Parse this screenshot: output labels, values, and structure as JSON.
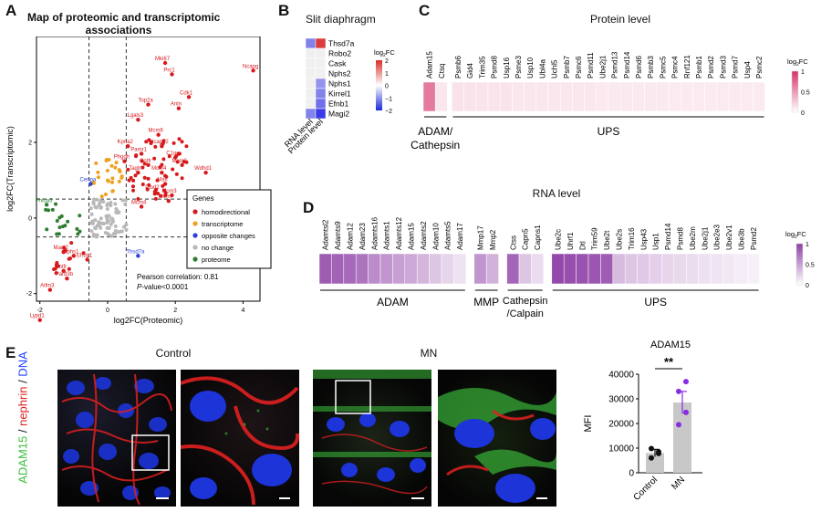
{
  "panels": {
    "a": {
      "letter": "A",
      "title_line1": "Map of proteomic and transcriptomic",
      "title_line2": "associations"
    },
    "b": {
      "letter": "B",
      "title": "Slit diaphragm"
    },
    "c": {
      "letter": "C",
      "title": "Protein level"
    },
    "d": {
      "letter": "D",
      "title": "RNA level"
    },
    "e": {
      "letter": "E",
      "control_label": "Control",
      "mn_label": "MN",
      "ylabel_part1": "ADAM15",
      "ylabel_sep1": " / ",
      "ylabel_part2": "nephrin",
      "ylabel_sep2": " / ",
      "ylabel_part3": "DNA"
    }
  },
  "colors": {
    "homodirectional": "#d7191c",
    "transcriptome": "#f0a020",
    "opposite": "#2b3fd8",
    "nochange": "#b8b8b8",
    "proteome": "#2e7d32",
    "heat_pos": "#d6336c",
    "heat_purple": "#8e3fa6",
    "adam15_green": "#3cbf3c",
    "nephrin_red": "#e02020",
    "dna_blue": "#2040ff"
  },
  "chart_data": [
    {
      "id": "scatter_A",
      "type": "scatter",
      "xlabel": "log2FC(Proteomic)",
      "ylabel": "log2FC(Transcriptomic)",
      "xlim": [
        -2.1,
        4.5
      ],
      "ylim": [
        -2.2,
        4.8
      ],
      "xticks": [
        -2,
        0,
        2,
        4
      ],
      "yticks": [
        -2,
        0,
        2
      ],
      "legend_title": "Genes",
      "legend": [
        {
          "key": "homodirectional",
          "label": "homodirectional"
        },
        {
          "key": "transcriptome",
          "label": "transcriptome"
        },
        {
          "key": "opposite",
          "label": "opposite changes"
        },
        {
          "key": "nochange",
          "label": "no change"
        },
        {
          "key": "proteome",
          "label": "proteome"
        }
      ],
      "annotation_line1": "Pearson correlation: 0.81",
      "annotation_line2_italic": "P",
      "annotation_line2_rest": "-value<0.0001",
      "labeled_points": [
        {
          "label": "Mki67",
          "x": 1.7,
          "y": 4.1,
          "group": "homodirectional"
        },
        {
          "label": "Prc1",
          "x": 1.9,
          "y": 3.8,
          "group": "homodirectional"
        },
        {
          "label": "Ncapg",
          "x": 4.3,
          "y": 3.9,
          "group": "homodirectional"
        },
        {
          "label": "Cdk1",
          "x": 2.4,
          "y": 3.2,
          "group": "homodirectional"
        },
        {
          "label": "Top2a",
          "x": 1.2,
          "y": 3.0,
          "group": "homodirectional"
        },
        {
          "label": "Anln",
          "x": 2.1,
          "y": 2.9,
          "group": "homodirectional"
        },
        {
          "label": "Lgals3",
          "x": 0.9,
          "y": 2.6,
          "group": "homodirectional"
        },
        {
          "label": "Mcm6",
          "x": 1.5,
          "y": 2.2,
          "group": "homodirectional"
        },
        {
          "label": "Kpna2",
          "x": 0.6,
          "y": 1.9,
          "group": "homodirectional"
        },
        {
          "label": "Pamr1",
          "x": 1.0,
          "y": 1.7,
          "group": "homodirectional"
        },
        {
          "label": "Ncapg2",
          "x": 1.6,
          "y": 1.9,
          "group": "homodirectional"
        },
        {
          "label": "C1qc",
          "x": 2.0,
          "y": 1.6,
          "group": "homodirectional"
        },
        {
          "label": "Phgdh",
          "x": 0.5,
          "y": 1.5,
          "group": "homodirectional"
        },
        {
          "label": "Cntfr",
          "x": 1.2,
          "y": 1.4,
          "group": "homodirectional"
        },
        {
          "label": "Mcm2",
          "x": 2.2,
          "y": 1.4,
          "group": "homodirectional"
        },
        {
          "label": "Tagln",
          "x": 0.9,
          "y": 1.2,
          "group": "homodirectional"
        },
        {
          "label": "Mcm4",
          "x": 1.6,
          "y": 1.2,
          "group": "homodirectional"
        },
        {
          "label": "Wdhd1",
          "x": 2.9,
          "y": 1.2,
          "group": "homodirectional"
        },
        {
          "label": "Maff",
          "x": 1.7,
          "y": 0.9,
          "group": "homodirectional"
        },
        {
          "label": "Plod2",
          "x": 1.4,
          "y": 0.7,
          "group": "homodirectional"
        },
        {
          "label": "Mcm3",
          "x": 1.9,
          "y": 0.6,
          "group": "homodirectional"
        },
        {
          "label": "Mcm7",
          "x": 1.8,
          "y": 0.45,
          "group": "homodirectional"
        },
        {
          "label": "Mcm4",
          "x": 1.0,
          "y": 0.3,
          "group": "homodirectional"
        },
        {
          "label": "Cenpa",
          "x": -0.5,
          "y": 0.9,
          "group": "opposite"
        },
        {
          "label": "Phlda3",
          "x": -1.8,
          "y": 0.35,
          "group": "proteome"
        },
        {
          "label": "Magi2",
          "x": -1.3,
          "y": -0.9,
          "group": "homodirectional"
        },
        {
          "label": "Nphs1",
          "x": -1.0,
          "y": -1.0,
          "group": "homodirectional"
        },
        {
          "label": "Ehbp1",
          "x": -0.6,
          "y": -1.1,
          "group": "homodirectional"
        },
        {
          "label": "Thsd7a",
          "x": 0.9,
          "y": -1.0,
          "group": "opposite"
        },
        {
          "label": "Cntfr",
          "x": -1.3,
          "y": -1.4,
          "group": "homodirectional"
        },
        {
          "label": "Pard3b",
          "x": -1.2,
          "y": -1.6,
          "group": "homodirectional"
        },
        {
          "label": "Aifm3",
          "x": -1.7,
          "y": -1.9,
          "group": "homodirectional"
        },
        {
          "label": "Lypd1",
          "x": -2.0,
          "y": -2.7,
          "group": "homodirectional"
        }
      ]
    },
    {
      "id": "heatmap_B",
      "type": "heatmap",
      "rows": [
        "Thsd7a",
        "Robo2",
        "Cask",
        "Nphs2",
        "Nphs1",
        "Kirrel1",
        "Efnb1",
        "Magi2"
      ],
      "columns": [
        "RNA level",
        "Protein level"
      ],
      "values": [
        [
          -0.5,
          0.9
        ],
        [
          0,
          0
        ],
        [
          0,
          0
        ],
        [
          0,
          0
        ],
        [
          0,
          -0.4
        ],
        [
          0,
          -0.5
        ],
        [
          0,
          -0.6
        ],
        [
          -0.5,
          -0.9
        ]
      ],
      "colorbar_label_base": "log",
      "colorbar_label_sub": "2",
      "colorbar_label_tail": "FC",
      "colorbar_ticks": [
        "2",
        "1",
        "0",
        "−1",
        "−2"
      ]
    },
    {
      "id": "heatmap_C",
      "type": "heatmap",
      "columns": [
        "Adam15",
        "Ctsq",
        "Psmb6",
        "Gid4",
        "Trim35",
        "Psmd8",
        "Usp16",
        "Psme3",
        "Usp10",
        "Ubl4a",
        "Uchl5",
        "Psmb7",
        "Psmc6",
        "Psmd11",
        "Ube2j1",
        "Psmd13",
        "Psmd14",
        "Psmd6",
        "Psmb3",
        "Psmc5",
        "Psmc4",
        "Rnf121",
        "Psmb1",
        "Psmd2",
        "Psmd3",
        "Psmd7",
        "Usp4",
        "Psmc2"
      ],
      "values": [
        0.65,
        0.12,
        0.14,
        0.14,
        0.13,
        0.13,
        0.13,
        0.12,
        0.12,
        0.12,
        0.12,
        0.12,
        0.12,
        0.12,
        0.11,
        0.11,
        0.11,
        0.11,
        0.11,
        0.11,
        0.1,
        0.1,
        0.1,
        0.1,
        0.1,
        0.1,
        0.1,
        0.1
      ],
      "groups": [
        {
          "label_line1": "ADAM/",
          "label_line2": "Cathepsin",
          "start": 0,
          "end": 1
        },
        {
          "label_line1": "UPS",
          "label_line2": "",
          "start": 2,
          "end": 27
        }
      ],
      "colorbar_ticks": [
        "1",
        "0.5",
        "0"
      ]
    },
    {
      "id": "heatmap_D",
      "type": "heatmap",
      "blocks": [
        {
          "group": "ADAM",
          "columns": [
            "Adamtsl2",
            "Adamts9",
            "Adam12",
            "Adam23",
            "Adamts16",
            "Adamts1",
            "Adamts12",
            "Adam15",
            "Adamts2",
            "Adam10",
            "Adamts5",
            "Adam17"
          ],
          "values": [
            0.85,
            0.82,
            0.78,
            0.72,
            0.6,
            0.55,
            0.5,
            0.45,
            0.38,
            0.3,
            0.22,
            0.15
          ]
        },
        {
          "group": "MMP",
          "columns": [
            "Mmp17",
            "Mmp2"
          ],
          "values": [
            0.55,
            0.4
          ]
        },
        {
          "group_line1": "Cathepsin",
          "group_line2": "/Calpain",
          "group": "Cathepsin/Calpain",
          "columns": [
            "Ctss",
            "Capn5",
            "Capns1"
          ],
          "values": [
            0.8,
            0.3,
            0.18
          ]
        },
        {
          "group": "UPS",
          "columns": [
            "Ube2c",
            "Uhrf1",
            "Dtl",
            "Trim59",
            "Ube2t",
            "Ube2s",
            "Trim16",
            "Usp43",
            "Usp1",
            "Psmd14",
            "Psmd8",
            "Ube2m",
            "Ube2j1",
            "Ube2e3",
            "Ube2v1",
            "Ube3b",
            "Psmd2"
          ],
          "values": [
            0.95,
            0.92,
            0.9,
            0.88,
            0.85,
            0.35,
            0.3,
            0.28,
            0.25,
            0.22,
            0.2,
            0.18,
            0.16,
            0.14,
            0.12,
            0.1,
            0.08
          ]
        }
      ],
      "colorbar_ticks": [
        "1",
        "0.5",
        "0"
      ]
    },
    {
      "id": "bar_E",
      "type": "bar",
      "title": "ADAM15",
      "categories": [
        "Control",
        "MN"
      ],
      "values": [
        8000,
        28500
      ],
      "error": [
        1500,
        4500
      ],
      "points": [
        [
          6000,
          7800,
          9800,
          8500
        ],
        [
          19500,
          24500,
          33000,
          37000
        ]
      ],
      "ylim": [
        0,
        40000
      ],
      "yticks": [
        0,
        10000,
        20000,
        30000,
        40000
      ],
      "ylabel": "MFI",
      "significance": "**"
    }
  ]
}
